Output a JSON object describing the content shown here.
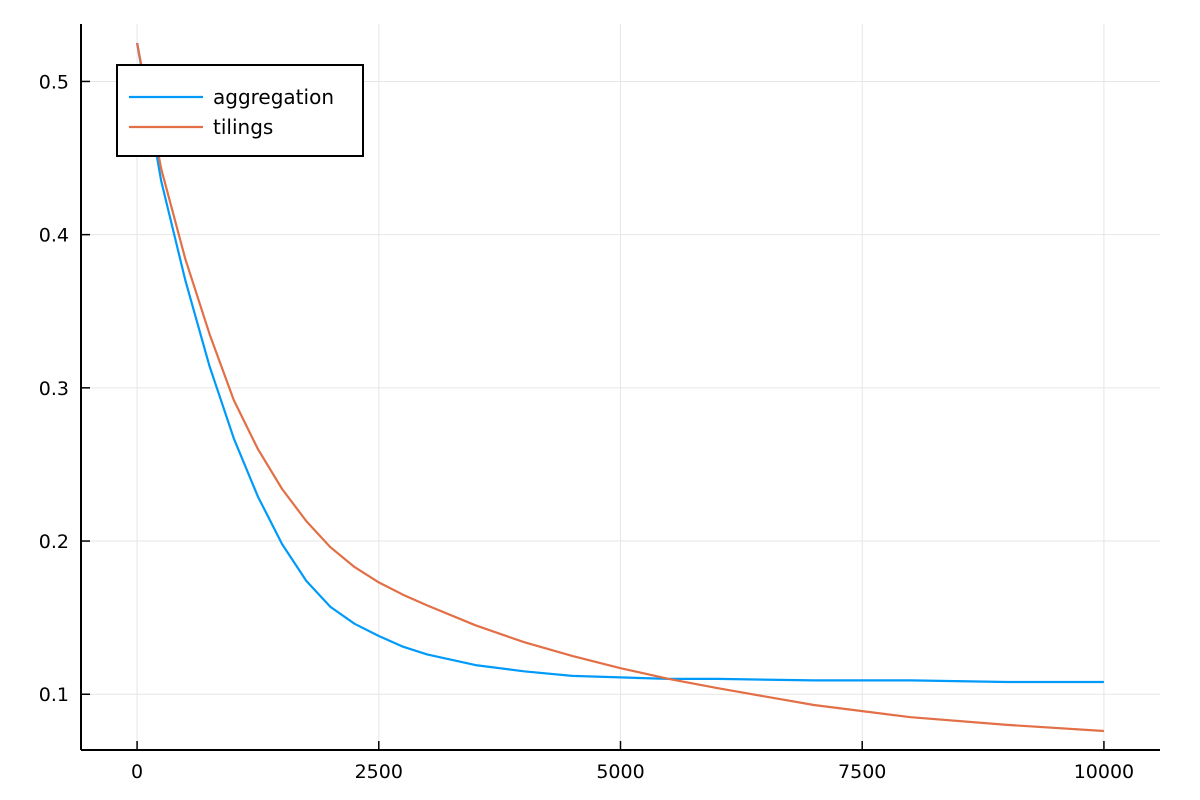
{
  "chart_data": {
    "type": "line",
    "title": "",
    "xlabel": "",
    "ylabel": "",
    "xlim": [
      -580,
      10580
    ],
    "ylim": [
      0.0636,
      0.5375
    ],
    "grid": true,
    "legend_position": "top-left",
    "x_ticks": [
      {
        "value": 0,
        "label": "0"
      },
      {
        "value": 2500,
        "label": "2500"
      },
      {
        "value": 5000,
        "label": "5000"
      },
      {
        "value": 7500,
        "label": "7500"
      },
      {
        "value": 10000,
        "label": "10000"
      }
    ],
    "y_ticks": [
      {
        "value": 0.1,
        "label": "0.1"
      },
      {
        "value": 0.2,
        "label": "0.2"
      },
      {
        "value": 0.3,
        "label": "0.3"
      },
      {
        "value": 0.4,
        "label": "0.4"
      },
      {
        "value": 0.5,
        "label": "0.5"
      }
    ],
    "series": [
      {
        "name": "aggregation",
        "color": "#009af9",
        "x": [
          0,
          250,
          500,
          750,
          1000,
          1250,
          1500,
          1750,
          2000,
          2250,
          2500,
          2750,
          3000,
          3500,
          4000,
          4500,
          5000,
          5500,
          6000,
          7000,
          8000,
          9000,
          10000
        ],
        "y": [
          0.525,
          0.435,
          0.37,
          0.314,
          0.267,
          0.229,
          0.198,
          0.174,
          0.157,
          0.146,
          0.138,
          0.131,
          0.126,
          0.119,
          0.115,
          0.112,
          0.111,
          0.11,
          0.11,
          0.109,
          0.109,
          0.108,
          0.108
        ]
      },
      {
        "name": "tilings",
        "color": "#e26f46",
        "x": [
          0,
          250,
          500,
          750,
          1000,
          1250,
          1500,
          1750,
          2000,
          2250,
          2500,
          2750,
          3000,
          3500,
          4000,
          4500,
          5000,
          5500,
          6000,
          7000,
          8000,
          9000,
          10000
        ],
        "y": [
          0.525,
          0.443,
          0.384,
          0.335,
          0.292,
          0.26,
          0.234,
          0.213,
          0.196,
          0.183,
          0.173,
          0.165,
          0.158,
          0.145,
          0.134,
          0.125,
          0.117,
          0.11,
          0.104,
          0.093,
          0.085,
          0.08,
          0.076
        ]
      }
    ]
  }
}
